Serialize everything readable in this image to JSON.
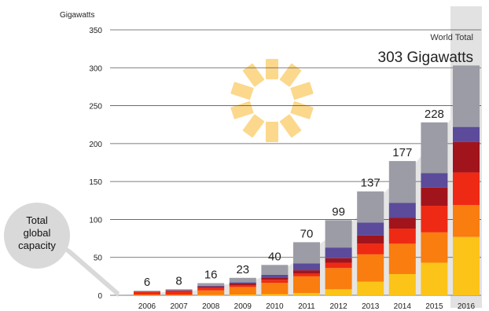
{
  "chart_data": {
    "type": "bar",
    "stacked": true,
    "ylabel": "Gigawatts",
    "ylim": [
      0,
      350
    ],
    "yticks": [
      0,
      50,
      100,
      150,
      200,
      250,
      300,
      350
    ],
    "grid": true,
    "categories": [
      "2006",
      "2007",
      "2008",
      "2009",
      "2010",
      "2011",
      "2012",
      "2013",
      "2014",
      "2015",
      "2016"
    ],
    "totals": [
      6,
      8,
      16,
      23,
      40,
      70,
      99,
      137,
      177,
      228,
      303
    ],
    "total_labels": [
      "6",
      "8",
      "16",
      "23",
      "40",
      "70",
      "99",
      "137",
      "177",
      "228",
      ""
    ],
    "series": [
      {
        "color": "#fcc419",
        "values": [
          0,
          0,
          0.5,
          1,
          1.5,
          3,
          8,
          18,
          28,
          43,
          77
        ]
      },
      {
        "color": "#f97d0f",
        "values": [
          1,
          1,
          6,
          10,
          15,
          22,
          28,
          36,
          40,
          40,
          42
        ]
      },
      {
        "color": "#ee2a14",
        "values": [
          3.5,
          4.5,
          3.5,
          2.5,
          4,
          4,
          7,
          14,
          20,
          35,
          43
        ]
      },
      {
        "color": "#a1141c",
        "values": [
          0.5,
          1,
          1.5,
          2,
          3,
          4,
          6,
          11,
          14,
          24,
          40
        ]
      },
      {
        "color": "#5b4b9a",
        "values": [
          0,
          0.5,
          1,
          1.5,
          3.5,
          9,
          14,
          17,
          20,
          19,
          20
        ]
      },
      {
        "color": "#9b9ca5",
        "values": [
          1,
          1,
          3.5,
          6,
          13,
          28,
          36,
          41,
          55,
          67,
          81
        ]
      }
    ],
    "highlight": {
      "category": "2016",
      "label": "World Total",
      "value_text": "303 Gigawatts"
    },
    "callout": {
      "lines": [
        "Total",
        "global",
        "capacity"
      ]
    },
    "colors": {
      "trend_area": "#e5e5e5",
      "highlight_band": "#e2e2e2",
      "sun": "#fbd88c",
      "grid": "#555555"
    }
  }
}
